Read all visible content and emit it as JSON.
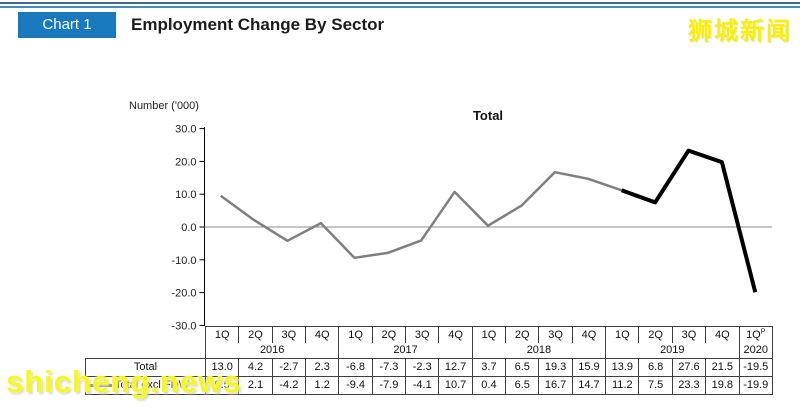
{
  "header": {
    "chart_label": "Chart 1",
    "title": "Employment Change By Sector"
  },
  "watermarks": {
    "top_right": "狮城新闻",
    "bottom_left": "shicheng.news"
  },
  "colors": {
    "badge_blue": "#1879bd",
    "topline_dark": "#44688c",
    "topline_light": "#3e8fc6",
    "series_gray": "#7f7f7f",
    "series_highlight_black": "#000000",
    "zero_gridline": "#8c8c8c",
    "axis_black": "#000000",
    "table_border": "#3f3f3f",
    "watermark_yellow": "#f7f71e"
  },
  "chart_data": {
    "type": "line",
    "title": "Total",
    "ylabel": "Number ('000)",
    "ylim": [
      -30,
      30
    ],
    "grid": "zero-line-only",
    "ytick_labels": [
      "30.0",
      "20.0",
      "10.0",
      "0.0",
      "-10.0",
      "-20.0",
      "-30.0"
    ],
    "x_quarters": [
      "1Q",
      "2Q",
      "3Q",
      "4Q",
      "1Q",
      "2Q",
      "3Q",
      "4Q",
      "1Q",
      "2Q",
      "3Q",
      "4Q",
      "1Q",
      "2Q",
      "3Q",
      "4Q",
      "1Q"
    ],
    "last_quarter_superscript": "P",
    "year_groups": [
      {
        "label": "2016",
        "span": 4
      },
      {
        "label": "2017",
        "span": 4
      },
      {
        "label": "2018",
        "span": 4
      },
      {
        "label": "2019",
        "span": 4
      },
      {
        "label": "2020",
        "span": 1
      }
    ],
    "series": [
      {
        "name": "Total",
        "plotted": false,
        "values": [
          "13.0",
          "4.2",
          "-2.7",
          "2.3",
          "-6.8",
          "-7.3",
          "-2.3",
          "12.7",
          "3.7",
          "6.5",
          "19.3",
          "15.9",
          "13.9",
          "6.8",
          "27.6",
          "21.5",
          "-19.5"
        ]
      },
      {
        "name": "Total excl FDW",
        "plotted": true,
        "highlight_from_index": 12,
        "values": [
          "9.5",
          "2.1",
          "-4.2",
          "1.2",
          "-9.4",
          "-7.9",
          "-4.1",
          "10.7",
          "0.4",
          "6.5",
          "16.7",
          "14.7",
          "11.2",
          "7.5",
          "23.3",
          "19.8",
          "-19.9"
        ]
      }
    ],
    "legend": [
      {
        "name": "Total excl FDW",
        "style": "gray-line"
      }
    ],
    "legend_position": "in-table-row-label"
  }
}
